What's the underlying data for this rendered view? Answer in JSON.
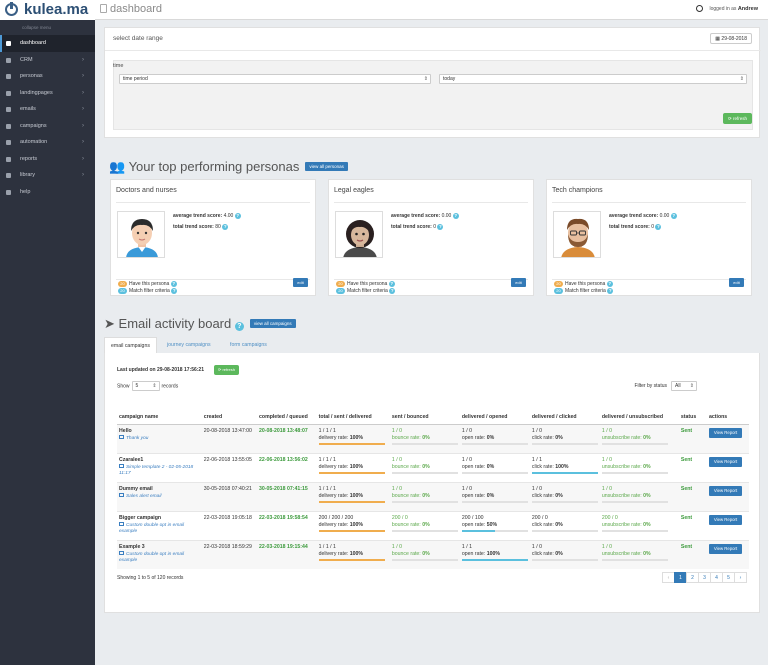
{
  "brand": {
    "name": "kulea.ma"
  },
  "header": {
    "page_title": "dashboard",
    "logged_in_prefix": "logged in as",
    "user": "Andrew"
  },
  "sidebar": {
    "collapse_label": "collapse menu",
    "items": [
      {
        "label": "dashboard",
        "icon": "thumbs-up-icon",
        "active": true,
        "chevron": false
      },
      {
        "label": "CRM",
        "icon": "briefcase-icon",
        "chevron": true
      },
      {
        "label": "personas",
        "icon": "users-icon",
        "chevron": true
      },
      {
        "label": "landingpages",
        "icon": "landingpage-icon",
        "chevron": true
      },
      {
        "label": "emails",
        "icon": "at-icon",
        "chevron": true
      },
      {
        "label": "campaigns",
        "icon": "bullhorn-icon",
        "chevron": true
      },
      {
        "label": "automation",
        "icon": "cogs-icon",
        "chevron": true
      },
      {
        "label": "reports",
        "icon": "chart-icon",
        "chevron": true
      },
      {
        "label": "library",
        "icon": "folder-icon",
        "chevron": true
      },
      {
        "label": "help",
        "icon": "question-icon",
        "chevron": false
      }
    ]
  },
  "daterange": {
    "title": "select date range",
    "date_button": "29-08-2018",
    "time_label": "time",
    "select1": "time period",
    "select2": "today",
    "refresh": "refresh"
  },
  "personas_section": {
    "title": "Your top performing personas",
    "view_all": "view all personas",
    "cards": [
      {
        "title": "Doctors and nurses",
        "avg_label": "average trend score:",
        "avg": "4.00",
        "total_label": "total trend score:",
        "total": "80",
        "have_count": "20",
        "have_label": "Have this persona",
        "match_count": "20",
        "match_label": "Match filter criteria",
        "edit": "edit"
      },
      {
        "title": "Legal eagles",
        "avg_label": "average trend score:",
        "avg": "0.00",
        "total_label": "total trend score:",
        "total": "0",
        "have_count": "20",
        "have_label": "Have this persona",
        "match_count": "20",
        "match_label": "Match filter criteria",
        "edit": "edit"
      },
      {
        "title": "Tech champions",
        "avg_label": "average trend score:",
        "avg": "0.00",
        "total_label": "total trend score:",
        "total": "0",
        "have_count": "20",
        "have_label": "Have this persona",
        "match_count": "20",
        "match_label": "Match filter criteria",
        "edit": "edit"
      }
    ]
  },
  "email_section": {
    "title": "Email activity board",
    "view_all": "view all campaigns",
    "tabs": [
      "email campaigns",
      "journey campaigns",
      "form campaigns"
    ],
    "last_updated": "Last updated on 29-08-2018 17:56:21",
    "refresh": "refresh",
    "show_label": "Show",
    "show_value": "5",
    "records_label": "records",
    "filter_label": "Filter by status",
    "filter_value": "All",
    "columns": [
      "campaign name",
      "created",
      "completed / queued",
      "total / sent / delivered",
      "sent / bounced",
      "delivered / opened",
      "delivered / clicked",
      "delivered / unsubscribed",
      "status",
      "actions"
    ],
    "rows": [
      {
        "name": "Hello",
        "template": "Thank you",
        "created": "20-08-2018 13:47:00",
        "completed": "20-08-2018 13:48:07",
        "total": "1 / 1 / 1",
        "delivery_rate_label": "delivery rate:",
        "delivery_rate": "100%",
        "sent": "1 / 0",
        "bounce_label": "bounce rate:",
        "bounce": "0%",
        "opened": "1 / 0",
        "open_label": "open rate:",
        "open": "0%",
        "open_fill": 0,
        "clicked": "1 / 0",
        "click_label": "click rate:",
        "click": "0%",
        "click_fill": 0,
        "unsub": "1 / 0",
        "unsub_label": "unsubscribe rate:",
        "unsub_rate": "0%",
        "status": "Sent",
        "action": "View Report"
      },
      {
        "name": "Czaralee1",
        "template": "Simple template 2 - 02-05-2018 11:17",
        "created": "22-06-2018 13:55:05",
        "completed": "22-06-2018 13:56:02",
        "total": "1 / 1 / 1",
        "delivery_rate_label": "delivery rate:",
        "delivery_rate": "100%",
        "sent": "1 / 0",
        "bounce_label": "bounce rate:",
        "bounce": "0%",
        "opened": "1 / 0",
        "open_label": "open rate:",
        "open": "0%",
        "open_fill": 0,
        "clicked": "1 / 1",
        "click_label": "click rate:",
        "click": "100%",
        "click_fill": 1,
        "unsub": "1 / 0",
        "unsub_label": "unsubscribe rate:",
        "unsub_rate": "0%",
        "status": "Sent",
        "action": "View Report"
      },
      {
        "name": "Dummy email",
        "template": "Sales alert email",
        "created": "30-05-2018 07:40:21",
        "completed": "30-05-2018 07:41:15",
        "total": "1 / 1 / 1",
        "delivery_rate_label": "delivery rate:",
        "delivery_rate": "100%",
        "sent": "1 / 0",
        "bounce_label": "bounce rate:",
        "bounce": "0%",
        "opened": "1 / 0",
        "open_label": "open rate:",
        "open": "0%",
        "open_fill": 0,
        "clicked": "1 / 0",
        "click_label": "click rate:",
        "click": "0%",
        "click_fill": 0,
        "unsub": "1 / 0",
        "unsub_label": "unsubscribe rate:",
        "unsub_rate": "0%",
        "status": "Sent",
        "action": "View Report"
      },
      {
        "name": "Bigger campaign",
        "template": "Custom double opt in email example",
        "created": "22-03-2018 19:05:18",
        "completed": "22-03-2018 19:58:54",
        "total": "200 / 200 / 200",
        "delivery_rate_label": "delivery rate:",
        "delivery_rate": "100%",
        "sent": "200 / 0",
        "bounce_label": "bounce rate:",
        "bounce": "0%",
        "opened": "200 / 100",
        "open_label": "open rate:",
        "open": "50%",
        "open_fill": 0.5,
        "clicked": "200 / 0",
        "click_label": "click rate:",
        "click": "0%",
        "click_fill": 0,
        "unsub": "200 / 0",
        "unsub_label": "unsubscribe rate:",
        "unsub_rate": "0%",
        "status": "Sent",
        "action": "View Report"
      },
      {
        "name": "Example 3",
        "template": "Custom double opt in email example",
        "created": "22-03-2018 18:59:29",
        "completed": "22-03-2018 19:15:44",
        "total": "1 / 1 / 1",
        "delivery_rate_label": "delivery rate:",
        "delivery_rate": "100%",
        "sent": "1 / 0",
        "bounce_label": "bounce rate:",
        "bounce": "0%",
        "opened": "1 / 1",
        "open_label": "open rate:",
        "open": "100%",
        "open_fill": 1,
        "clicked": "1 / 0",
        "click_label": "click rate:",
        "click": "0%",
        "click_fill": 0,
        "unsub": "1 / 0",
        "unsub_label": "unsubscribe rate:",
        "unsub_rate": "0%",
        "status": "Sent",
        "action": "View Report"
      }
    ],
    "showing": "Showing 1 to 5 of 120 records",
    "pager": [
      "‹",
      "1",
      "2",
      "3",
      "4",
      "5",
      "›"
    ]
  },
  "colors": {
    "sidebar": "#2d323e",
    "primary": "#337ab7",
    "success": "#5cb85c",
    "delivery_bar": "#f0ad4e",
    "open_bar": "#5bc0de",
    "badge_orange": "#f0ad4e",
    "badge_blue": "#5bc0de"
  }
}
